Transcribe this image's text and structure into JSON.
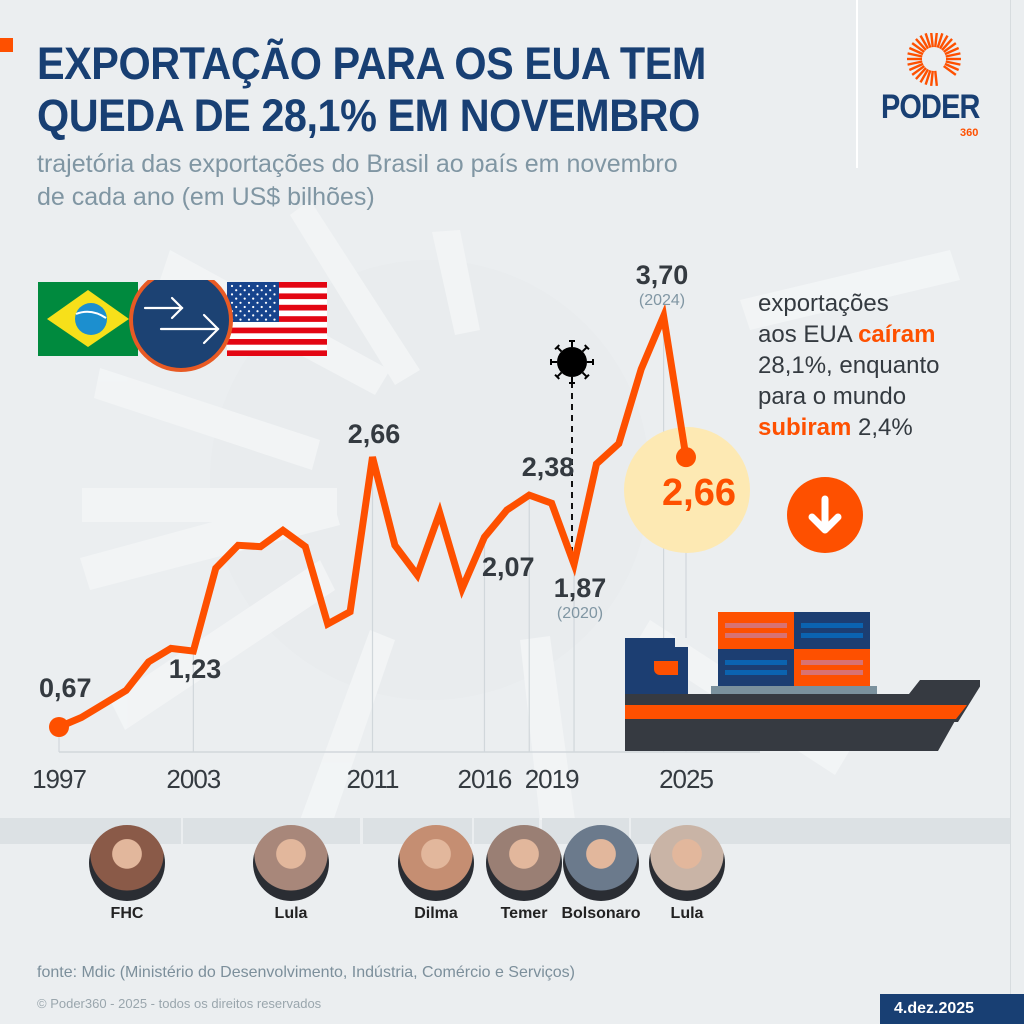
{
  "header": {
    "title_line1": "EXPORTAÇÃO PARA OS EUA TEM",
    "title_line2": "QUEDA DE 28,1% EM NOVEMBRO",
    "subtitle_line1": "trajetória das exportações do Brasil ao país em novembro",
    "subtitle_line2": "de cada ano (em US$ bilhões)"
  },
  "logo": {
    "word": "PODER",
    "sub": "360"
  },
  "annotation": {
    "l1": "exportações",
    "l2a": "aos EUA ",
    "l2b": "caíram",
    "l3": "28,1%, enquanto",
    "l4": "para o mundo",
    "l5a": "subiram",
    "l5b": " 2,4%"
  },
  "colors": {
    "accent": "#fe5000",
    "navy": "#183f73",
    "text": "#343a40",
    "highlight_circle": "#fde9b3",
    "background": "#ebeef0"
  },
  "icons": {
    "flags": "brazil-to-usa-arrows",
    "covid": "virus-icon",
    "down": "arrow-down-icon",
    "ship": "cargo-ship-icon"
  },
  "chart_data": {
    "type": "line",
    "title": "EXPORTAÇÃO PARA OS EUA TEM QUEDA DE 28,1% EM NOVEMBRO",
    "ylabel": "US$ bilhões",
    "x": [
      1997,
      1998,
      1999,
      2000,
      2001,
      2002,
      2003,
      2004,
      2005,
      2006,
      2007,
      2008,
      2009,
      2010,
      2011,
      2012,
      2013,
      2014,
      2015,
      2016,
      2017,
      2018,
      2019,
      2020,
      2021,
      2022,
      2023,
      2024,
      2025
    ],
    "values": [
      0.67,
      0.74,
      0.84,
      0.94,
      1.15,
      1.25,
      1.23,
      1.84,
      2.01,
      2.0,
      2.12,
      2.0,
      1.43,
      1.52,
      2.66,
      2.01,
      1.79,
      2.25,
      1.69,
      2.07,
      2.27,
      2.38,
      2.32,
      1.87,
      2.61,
      2.76,
      3.31,
      3.7,
      2.66
    ],
    "ylim": [
      0,
      3.9
    ],
    "grid": false,
    "x_ticks": [
      "1997",
      "2003",
      "2011",
      "2016",
      "2019",
      "2025"
    ],
    "labels": [
      {
        "year": 1997,
        "text": "0,67"
      },
      {
        "year": 2003,
        "text": "1,23"
      },
      {
        "year": 2011,
        "text": "2,66"
      },
      {
        "year": 2016,
        "text": "2,07"
      },
      {
        "year": 2018,
        "text": "2,38"
      },
      {
        "year": 2020,
        "text": "1,87",
        "sub": "(2020)"
      },
      {
        "year": 2024,
        "text": "3,70",
        "sub": "(2024)"
      },
      {
        "year": 2025,
        "text": "2,66"
      }
    ]
  },
  "presidents": [
    {
      "name": "FHC",
      "start": 1997,
      "end": 2002
    },
    {
      "name": "Lula",
      "start": 2003,
      "end": 2010
    },
    {
      "name": "Dilma",
      "start": 2011,
      "end": 2015
    },
    {
      "name": "Temer",
      "start": 2016,
      "end": 2018
    },
    {
      "name": "Bolsonaro",
      "start": 2019,
      "end": 2022
    },
    {
      "name": "Lula",
      "start": 2023,
      "end": 2025
    }
  ],
  "footer": {
    "source": "fonte: Mdic (Ministério do Desenvolvimento, Indústria, Comércio e Serviços)",
    "copyright": "© Poder360 - 2025 - todos os direitos reservados",
    "date": "4.dez.2025"
  }
}
